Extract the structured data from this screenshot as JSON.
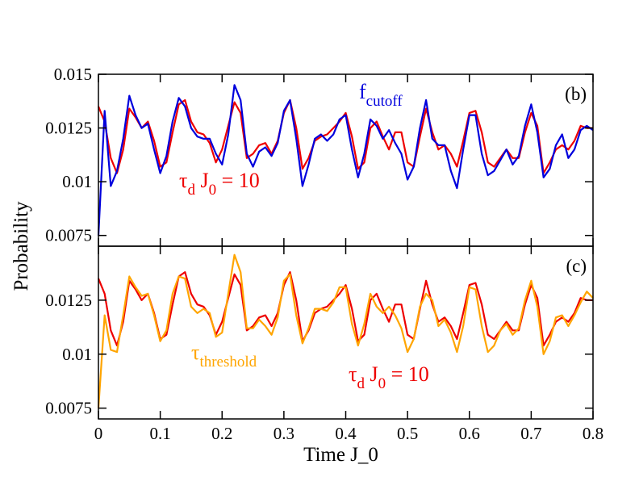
{
  "chart_data": [
    {
      "type": "line",
      "panel_label": "(b)",
      "ylabel": "Probability",
      "xlim": [
        0,
        0.8
      ],
      "xticks": [
        0,
        0.1,
        0.2,
        0.3,
        0.4,
        0.5,
        0.6,
        0.7,
        0.8
      ],
      "ylim": [
        0.007,
        0.015
      ],
      "yticks": [
        0.0075,
        0.01,
        0.0125,
        0.015
      ],
      "x": [
        0,
        0.01,
        0.02,
        0.03,
        0.04,
        0.05,
        0.06,
        0.07,
        0.08,
        0.09,
        0.1,
        0.11,
        0.12,
        0.13,
        0.14,
        0.15,
        0.16,
        0.17,
        0.18,
        0.19,
        0.2,
        0.21,
        0.22,
        0.23,
        0.24,
        0.25,
        0.26,
        0.27,
        0.28,
        0.29,
        0.3,
        0.31,
        0.32,
        0.33,
        0.34,
        0.35,
        0.36,
        0.37,
        0.38,
        0.39,
        0.4,
        0.41,
        0.42,
        0.43,
        0.44,
        0.45,
        0.46,
        0.47,
        0.48,
        0.49,
        0.5,
        0.51,
        0.52,
        0.53,
        0.54,
        0.55,
        0.56,
        0.57,
        0.58,
        0.59,
        0.6,
        0.61,
        0.62,
        0.63,
        0.64,
        0.65,
        0.66,
        0.67,
        0.68,
        0.69,
        0.7,
        0.71,
        0.72,
        0.73,
        0.74,
        0.75,
        0.76,
        0.77,
        0.78,
        0.79,
        0.8
      ],
      "series": [
        {
          "color": "#ee0000",
          "values": [
            0.0135,
            0.0128,
            0.0111,
            0.0104,
            0.0115,
            0.0134,
            0.013,
            0.0125,
            0.0128,
            0.0119,
            0.0107,
            0.0109,
            0.0123,
            0.0136,
            0.0138,
            0.0128,
            0.0123,
            0.0122,
            0.0118,
            0.0109,
            0.0115,
            0.0126,
            0.0137,
            0.0132,
            0.0111,
            0.0113,
            0.0117,
            0.0118,
            0.0113,
            0.0119,
            0.0132,
            0.0138,
            0.0125,
            0.0106,
            0.0111,
            0.0119,
            0.0121,
            0.0122,
            0.0125,
            0.0128,
            0.0132,
            0.0121,
            0.0106,
            0.0109,
            0.0125,
            0.0128,
            0.0121,
            0.0115,
            0.0123,
            0.0123,
            0.0109,
            0.0107,
            0.0121,
            0.0134,
            0.0123,
            0.0115,
            0.0117,
            0.0113,
            0.0107,
            0.0119,
            0.0132,
            0.0133,
            0.0123,
            0.0109,
            0.0107,
            0.0111,
            0.0115,
            0.0111,
            0.0111,
            0.0123,
            0.0132,
            0.0126,
            0.0104,
            0.0109,
            0.0115,
            0.0117,
            0.0115,
            0.0119,
            0.0126,
            0.0125,
            0.0125
          ]
        },
        {
          "color": "#0000dd",
          "values": [
            0.0075,
            0.0133,
            0.0098,
            0.0105,
            0.012,
            0.014,
            0.0131,
            0.0125,
            0.0127,
            0.0115,
            0.0104,
            0.0112,
            0.0128,
            0.0139,
            0.0135,
            0.0125,
            0.0121,
            0.012,
            0.012,
            0.0113,
            0.0108,
            0.0122,
            0.0145,
            0.0138,
            0.0113,
            0.0107,
            0.0114,
            0.0116,
            0.0112,
            0.0118,
            0.0133,
            0.0138,
            0.012,
            0.0098,
            0.0108,
            0.012,
            0.0122,
            0.0119,
            0.0122,
            0.0129,
            0.0131,
            0.0115,
            0.0102,
            0.0113,
            0.0129,
            0.0126,
            0.012,
            0.0124,
            0.0118,
            0.0113,
            0.0101,
            0.0107,
            0.0125,
            0.0138,
            0.012,
            0.0117,
            0.0117,
            0.0105,
            0.0097,
            0.0115,
            0.0131,
            0.0131,
            0.0113,
            0.0103,
            0.0105,
            0.011,
            0.0115,
            0.0108,
            0.0112,
            0.0126,
            0.0136,
            0.0123,
            0.0102,
            0.0106,
            0.0117,
            0.0122,
            0.0111,
            0.0115,
            0.0124,
            0.0126,
            0.0124
          ]
        }
      ],
      "annotations": [
        {
          "color": "#0000dd",
          "parts": [
            {
              "text": "f"
            },
            {
              "text": "cutoff",
              "sub": true
            }
          ]
        },
        {
          "color": "#ee0000",
          "parts": [
            {
              "text": "τ"
            },
            {
              "text": "d",
              "sub": true
            },
            {
              "text": " J"
            },
            {
              "text": "0",
              "sub": true
            },
            {
              "text": " = 10"
            }
          ]
        }
      ]
    },
    {
      "type": "line",
      "panel_label": "(c)",
      "xlabel": "Time J_0",
      "xlim": [
        0,
        0.8
      ],
      "xticks": [
        0,
        0.1,
        0.2,
        0.3,
        0.4,
        0.5,
        0.6,
        0.7,
        0.8
      ],
      "ylim": [
        0.007,
        0.015
      ],
      "yticks": [
        0.0075,
        0.01,
        0.0125
      ],
      "x": [
        0,
        0.01,
        0.02,
        0.03,
        0.04,
        0.05,
        0.06,
        0.07,
        0.08,
        0.09,
        0.1,
        0.11,
        0.12,
        0.13,
        0.14,
        0.15,
        0.16,
        0.17,
        0.18,
        0.19,
        0.2,
        0.21,
        0.22,
        0.23,
        0.24,
        0.25,
        0.26,
        0.27,
        0.28,
        0.29,
        0.3,
        0.31,
        0.32,
        0.33,
        0.34,
        0.35,
        0.36,
        0.37,
        0.38,
        0.39,
        0.4,
        0.41,
        0.42,
        0.43,
        0.44,
        0.45,
        0.46,
        0.47,
        0.48,
        0.49,
        0.5,
        0.51,
        0.52,
        0.53,
        0.54,
        0.55,
        0.56,
        0.57,
        0.58,
        0.59,
        0.6,
        0.61,
        0.62,
        0.63,
        0.64,
        0.65,
        0.66,
        0.67,
        0.68,
        0.69,
        0.7,
        0.71,
        0.72,
        0.73,
        0.74,
        0.75,
        0.76,
        0.77,
        0.78,
        0.79,
        0.8
      ],
      "series": [
        {
          "color": "#ee0000",
          "values": [
            0.0135,
            0.0128,
            0.0111,
            0.0104,
            0.0115,
            0.0134,
            0.013,
            0.0125,
            0.0128,
            0.0119,
            0.0107,
            0.0109,
            0.0123,
            0.0136,
            0.0138,
            0.0128,
            0.0123,
            0.0122,
            0.0118,
            0.0109,
            0.0115,
            0.0126,
            0.0137,
            0.0132,
            0.0111,
            0.0113,
            0.0117,
            0.0118,
            0.0113,
            0.0119,
            0.0132,
            0.0138,
            0.0125,
            0.0106,
            0.0111,
            0.0119,
            0.0121,
            0.0122,
            0.0125,
            0.0128,
            0.0132,
            0.0121,
            0.0106,
            0.0109,
            0.0125,
            0.0128,
            0.0121,
            0.0115,
            0.0123,
            0.0123,
            0.0109,
            0.0107,
            0.0121,
            0.0134,
            0.0123,
            0.0115,
            0.0117,
            0.0113,
            0.0107,
            0.0119,
            0.0132,
            0.0133,
            0.0123,
            0.0109,
            0.0107,
            0.0111,
            0.0115,
            0.0111,
            0.0111,
            0.0123,
            0.0132,
            0.0126,
            0.0104,
            0.0109,
            0.0115,
            0.0117,
            0.0115,
            0.0119,
            0.0126,
            0.0125,
            0.0125
          ]
        },
        {
          "color": "#ffa500",
          "values": [
            0.0075,
            0.0118,
            0.0102,
            0.0101,
            0.0118,
            0.0136,
            0.0131,
            0.0127,
            0.0128,
            0.0118,
            0.0106,
            0.0111,
            0.0128,
            0.0136,
            0.0135,
            0.0122,
            0.0119,
            0.0121,
            0.0119,
            0.0108,
            0.011,
            0.0128,
            0.0146,
            0.0138,
            0.0112,
            0.0112,
            0.0116,
            0.0113,
            0.0109,
            0.0117,
            0.0134,
            0.0137,
            0.0118,
            0.0105,
            0.0112,
            0.0121,
            0.0121,
            0.012,
            0.0124,
            0.0131,
            0.0131,
            0.0114,
            0.0104,
            0.0114,
            0.0128,
            0.0122,
            0.0119,
            0.0122,
            0.0118,
            0.0112,
            0.0101,
            0.0107,
            0.0122,
            0.0128,
            0.0125,
            0.0113,
            0.0116,
            0.011,
            0.0101,
            0.0113,
            0.0131,
            0.013,
            0.0113,
            0.0101,
            0.0104,
            0.0111,
            0.0114,
            0.0109,
            0.0112,
            0.0125,
            0.0134,
            0.0122,
            0.01,
            0.0106,
            0.0117,
            0.0118,
            0.0113,
            0.0118,
            0.0124,
            0.0129,
            0.0126
          ]
        }
      ],
      "annotations": [
        {
          "color": "#ffa500",
          "parts": [
            {
              "text": "τ"
            },
            {
              "text": "threshold",
              "sub": true
            }
          ]
        },
        {
          "color": "#ee0000",
          "parts": [
            {
              "text": "τ"
            },
            {
              "text": "d",
              "sub": true
            },
            {
              "text": " J"
            },
            {
              "text": "0",
              "sub": true
            },
            {
              "text": " = 10"
            }
          ]
        }
      ]
    }
  ]
}
